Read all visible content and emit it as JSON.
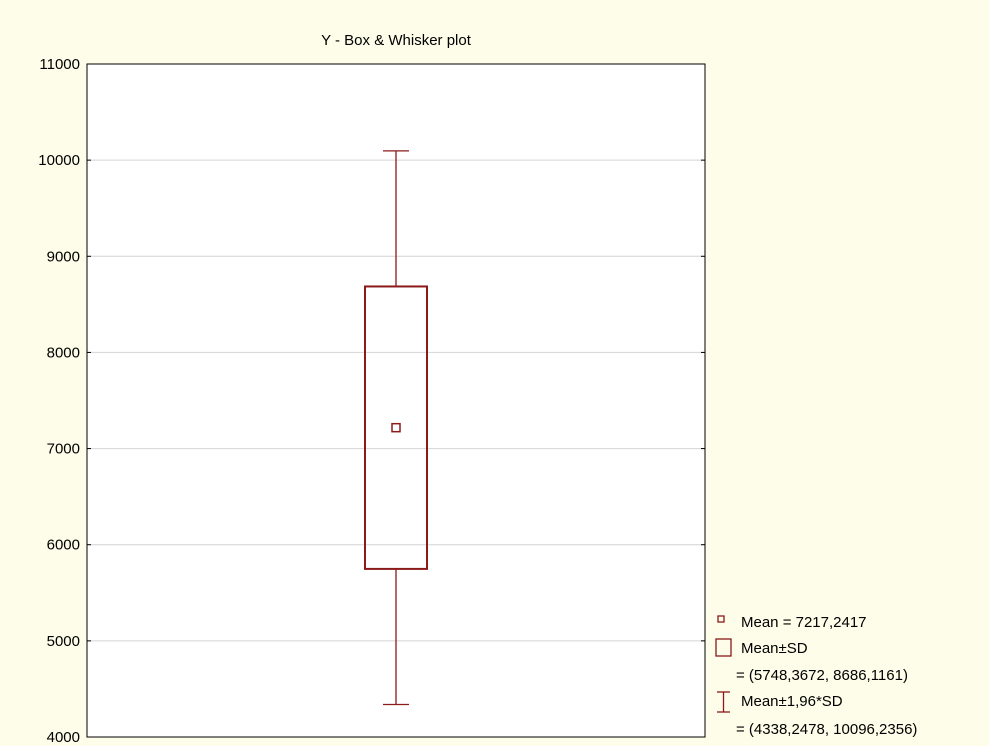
{
  "chart_data": {
    "type": "box",
    "title": "Y - Box & Whisker plot",
    "xlabel": "",
    "ylabel": "",
    "ylim": [
      4000,
      11000
    ],
    "yticks": [
      "4000",
      "5000",
      "6000",
      "7000",
      "8000",
      "9000",
      "10000",
      "11000"
    ],
    "grid": true,
    "series": [
      {
        "mean": 7217.2417,
        "box": [
          5748.3672,
          8686.1161
        ],
        "whisker": [
          4338.2478,
          10096.2356
        ]
      }
    ],
    "legend": {
      "placement": "bottom-right",
      "mean": "Mean = 7217,2417",
      "sd": "Mean±SD",
      "sd_range": "= (5748,3672, 8686,1161)",
      "ci": "Mean±1,96*SD",
      "ci_range": "= (4338,2478, 10096,2356)"
    },
    "colors": {
      "series": "#8b1a1a",
      "background": "#fdfde9",
      "plot_area": "#ffffff",
      "grid": "#d4d4d4"
    }
  }
}
